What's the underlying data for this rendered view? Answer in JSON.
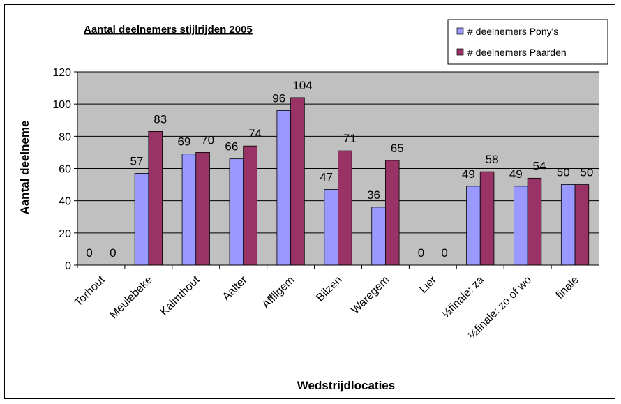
{
  "chart_data": {
    "type": "bar",
    "title": "Aantal deelnemers stijlrijden 2005",
    "xlabel": "Wedstrijdlocaties",
    "ylabel": "Aantal deelneme",
    "ylim": [
      0,
      120
    ],
    "yticks": [
      0,
      20,
      40,
      60,
      80,
      100,
      120
    ],
    "grid": true,
    "legend_position": "top-right",
    "categories": [
      "Torhout",
      "Meulebeke",
      "Kalmthout",
      "Aalter",
      "Affligem",
      "Bilzen",
      "Waregem",
      "Lier",
      "½finale: za",
      "½finale: zo of wo",
      "finale"
    ],
    "category_display": [
      "Torhout",
      "Meulebeke",
      "Kalmthout",
      "Aalter",
      "Affligem",
      "Bilzen",
      "Waregem",
      "Lier",
      "½finale: za",
      "½finale: zo of wo",
      "finale"
    ],
    "series": [
      {
        "name": "# deelnemers Pony's",
        "color": "#9999ff",
        "values": [
          0,
          57,
          69,
          66,
          96,
          47,
          36,
          0,
          49,
          49,
          50
        ]
      },
      {
        "name": "# deelnemers Paarden",
        "color": "#993366",
        "values": [
          0,
          83,
          70,
          74,
          104,
          71,
          65,
          0,
          58,
          54,
          50
        ]
      }
    ],
    "plot_background": "#c0c0c0"
  }
}
